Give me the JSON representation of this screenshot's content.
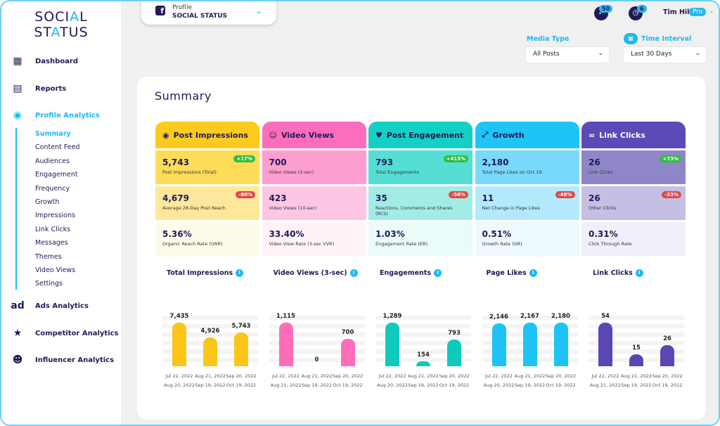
{
  "logo": {
    "line1a": "SOCI",
    "line1b": "A",
    "line1c": "L",
    "line2a": "ST",
    "line2b": "A",
    "line2c": "TUS"
  },
  "nav": [
    {
      "label": "Dashboard",
      "icon": "dashboard-icon"
    },
    {
      "label": "Reports",
      "icon": "reports-icon"
    },
    {
      "label": "Profile Analytics",
      "icon": "profile-icon"
    },
    {
      "label": "Ads Analytics",
      "icon": "ad-icon"
    },
    {
      "label": "Competitor Analytics",
      "icon": "trophy-icon"
    },
    {
      "label": "Influencer Analytics",
      "icon": "people-icon"
    }
  ],
  "subnav": [
    "Summary",
    "Content Feed",
    "Audiences",
    "Engagement",
    "Frequency",
    "Growth",
    "Impressions",
    "Link Clicks",
    "Messages",
    "Themes",
    "Video Views",
    "Settings"
  ],
  "profile": {
    "label": "Profile",
    "name": "SOCIAL STATUS"
  },
  "header": {
    "notifications": "50",
    "tasks": "6",
    "user": "Tim Hill",
    "plan": "Pro"
  },
  "filters": {
    "media_label": "Media Type",
    "media_value": "All Posts",
    "time_label": "Time Interval",
    "time_value": "Last 30 Days"
  },
  "summary_title": "Summary",
  "columns": [
    {
      "title": "Post Impressions",
      "icon": "fingerprint-icon",
      "color": "#fdcb1f",
      "c1": "#fddc5a",
      "c2": "#fde79b",
      "c3": "#fffbea",
      "rows": [
        {
          "value": "5,743",
          "desc": "Post Impressions (Total)",
          "change": "+17%"
        },
        {
          "value": "4,679",
          "desc": "Average 28-Day Post Reach",
          "change": "-80%"
        },
        {
          "value": "5.36%",
          "desc": "Organic Reach Rate (ORR)"
        }
      ]
    },
    {
      "title": "Video Views",
      "icon": "face-icon",
      "color": "#fd6dbb",
      "c1": "#fd9ed0",
      "c2": "#fdc6e4",
      "c3": "#fff3f9",
      "rows": [
        {
          "value": "700",
          "desc": "Video Views (3-sec)"
        },
        {
          "value": "423",
          "desc": "Video Views (10-sec)"
        },
        {
          "value": "33.40%",
          "desc": "Video View Rate (3-sec VVR)"
        }
      ]
    },
    {
      "title": "Post Engagement",
      "icon": "heart-icon",
      "color": "#14cfc3",
      "c1": "#55ded4",
      "c2": "#a3ece6",
      "c3": "#eafbf9",
      "rows": [
        {
          "value": "793",
          "desc": "Total Engagements",
          "change": "+415%"
        },
        {
          "value": "35",
          "desc": "Reactions, Comments and Shares (RCS)",
          "change": "-56%"
        },
        {
          "value": "1.03%",
          "desc": "Engagement Rate (ER)"
        }
      ]
    },
    {
      "title": "Growth",
      "icon": "expand-icon",
      "color": "#1fc4f7",
      "c1": "#79d9fa",
      "c2": "#b2e9fc",
      "c3": "#eef9fe",
      "rows": [
        {
          "value": "2,180",
          "desc": "Total Page Likes on Oct 19"
        },
        {
          "value": "11",
          "desc": "Net Change in Page Likes",
          "change": "-48%"
        },
        {
          "value": "0.51%",
          "desc": "Growth Rate (GR)"
        }
      ]
    },
    {
      "title": "Link Clicks",
      "icon": "link-icon",
      "color": "#5e49b8",
      "c1": "#8f86c8",
      "c2": "#c4bfe3",
      "c3": "#f1f0f8",
      "light": true,
      "rows": [
        {
          "value": "26",
          "desc": "Link Clicks",
          "change": "+73%"
        },
        {
          "value": "26",
          "desc": "Other Clicks",
          "change": "-33%"
        },
        {
          "value": "0.31%",
          "desc": "Click Through Rate"
        }
      ]
    }
  ],
  "colors": {
    "positive": "#2fbf3a",
    "negative": "#e04848",
    "accent": "#1fb8ef",
    "navy": "#1e1b57"
  },
  "chart_data": [
    {
      "type": "bar",
      "title": "Total Impressions",
      "color": "#fbc618",
      "categories": [
        [
          "Jul 22, 2022",
          "Aug 20, 2022"
        ],
        [
          "Aug 21, 2022",
          "Sep 19, 2022"
        ],
        [
          "Sep 20, 2022",
          "Oct 19, 2022"
        ]
      ],
      "values": [
        7435,
        4926,
        5743
      ],
      "labels": [
        "7,435",
        "4,926",
        "5,743"
      ]
    },
    {
      "type": "bar",
      "title": "Video Views (3-sec)",
      "color": "#fd6db8",
      "categories": [
        [
          "Jul 22, 2022",
          "Aug 21, 2022"
        ],
        [
          "Aug 21, 2022",
          "Sep 19, 2022"
        ],
        [
          "Sep 20, 2022",
          "Oct 19, 2022"
        ]
      ],
      "values": [
        1115,
        0,
        700
      ],
      "labels": [
        "1,115",
        "0",
        "700"
      ]
    },
    {
      "type": "bar",
      "title": "Engagements",
      "color": "#0fc9bd",
      "categories": [
        [
          "Jul 22, 2022",
          "Aug 20, 2022"
        ],
        [
          "Aug 21, 2022",
          "Sep 19, 2022"
        ],
        [
          "Sep 20, 2022",
          "Oct 19, 2022"
        ]
      ],
      "values": [
        1289,
        154,
        793
      ],
      "labels": [
        "1,289",
        "154",
        "793"
      ]
    },
    {
      "type": "bar",
      "title": "Page Likes",
      "color": "#1dc3f5",
      "categories": [
        [
          "Jul 22, 2022",
          "Aug 20, 2022"
        ],
        [
          "Aug 21, 2022",
          "Sep 19, 2022"
        ],
        [
          "Sep 20, 2022",
          "Oct 19, 2022"
        ]
      ],
      "values": [
        2146,
        2167,
        2180
      ],
      "labels": [
        "2,146",
        "2,167",
        "2,180"
      ]
    },
    {
      "type": "bar",
      "title": "Link Clicks",
      "color": "#5b46b4",
      "categories": [
        [
          "Jul 22, 2022",
          "Aug 21, 2022"
        ],
        [
          "Aug 21, 2022",
          "Sep 19, 2022"
        ],
        [
          "Sep 20, 2022",
          "Oct 19, 2022"
        ]
      ],
      "values": [
        54,
        15,
        26
      ],
      "labels": [
        "54",
        "15",
        "26"
      ]
    }
  ]
}
